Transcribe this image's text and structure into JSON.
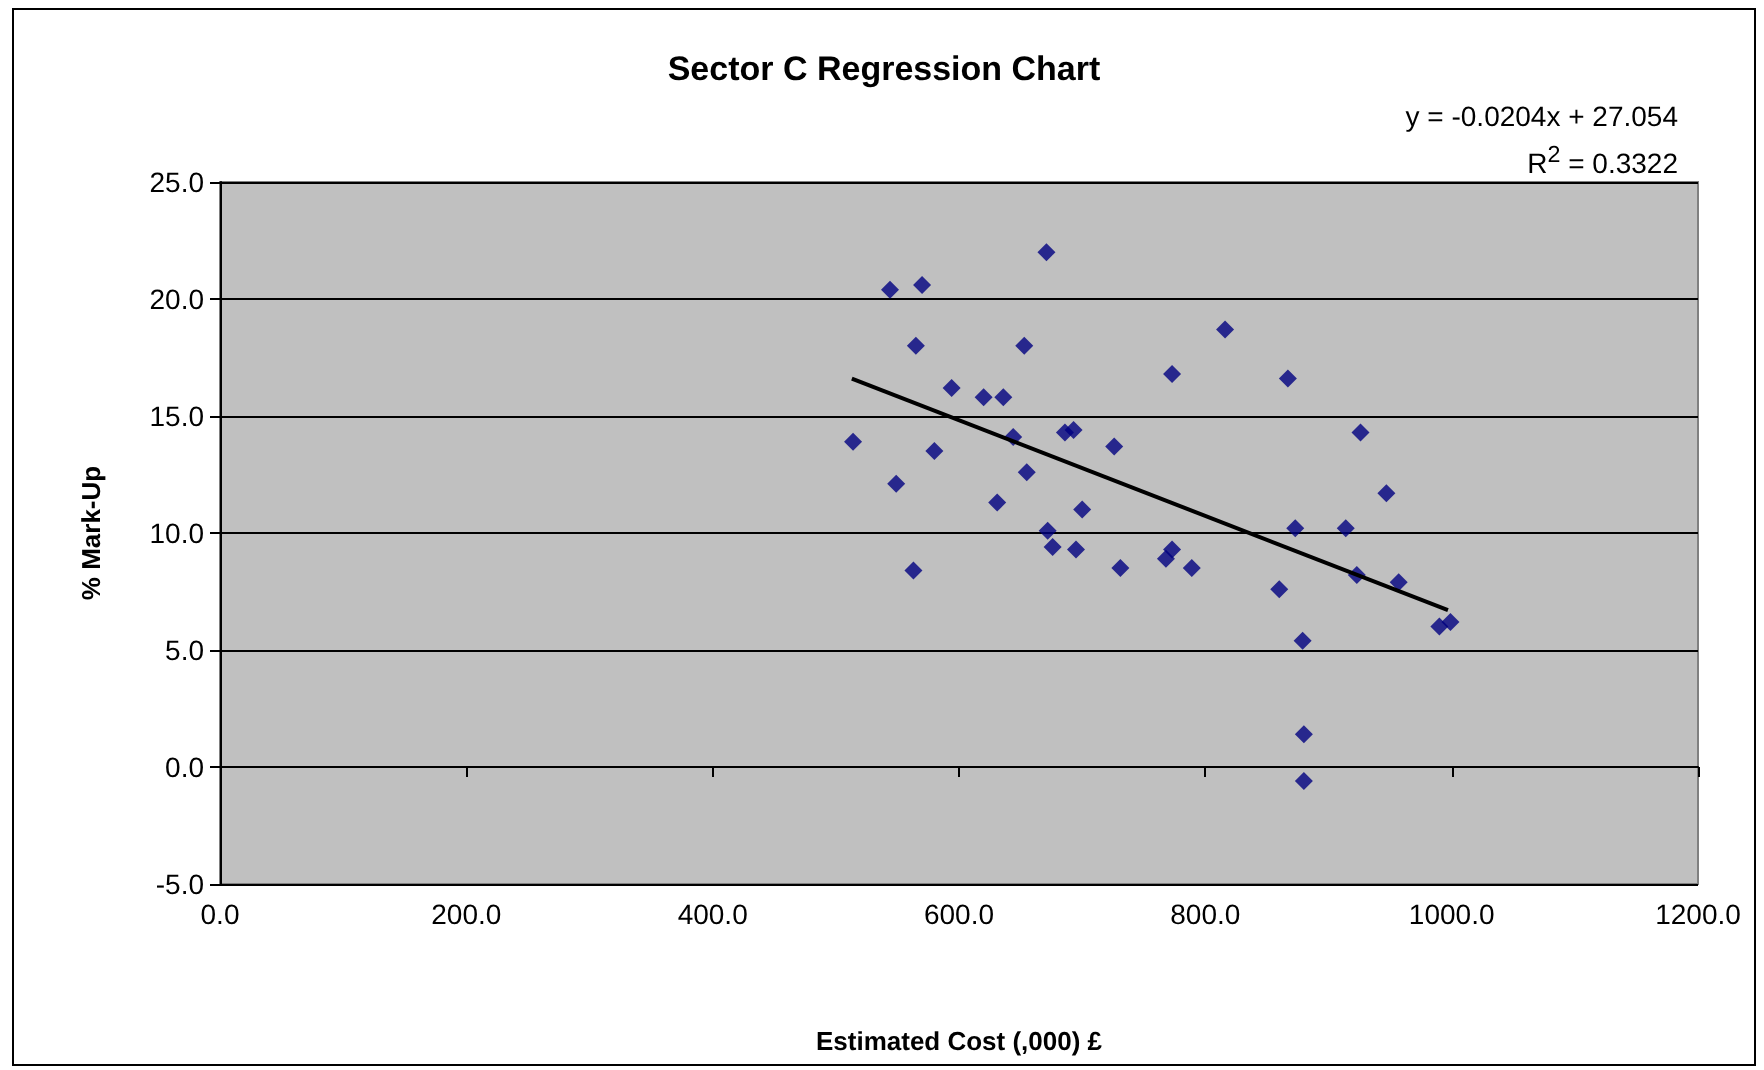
{
  "chart_data": {
    "type": "scatter",
    "title": "Sector C Regression Chart",
    "xlabel": "Estimated Cost (,000) £",
    "ylabel": "% Mark-Up",
    "annotations": [
      "y = -0.0204x + 27.054",
      "R$^{2}$ = 0.3322"
    ],
    "series": [
      {
        "color": "#000080",
        "marker": "diamond",
        "x": [
          671,
          544,
          570,
          565,
          653,
          773,
          594,
          620,
          636,
          514,
          580,
          644,
          686,
          693,
          726,
          549,
          655,
          631,
          700,
          672,
          676,
          695,
          731,
          773,
          768,
          789,
          563,
          816,
          867,
          926,
          947,
          873,
          914,
          860,
          923,
          957,
          990,
          999,
          879,
          880,
          880
        ],
        "values": [
          22.0,
          20.4,
          20.6,
          18.0,
          18.0,
          16.8,
          16.2,
          15.8,
          15.8,
          13.9,
          13.5,
          14.1,
          14.3,
          14.4,
          13.7,
          12.1,
          12.6,
          11.3,
          11.0,
          10.1,
          9.4,
          9.3,
          8.5,
          9.3,
          8.9,
          8.5,
          8.4,
          18.7,
          16.6,
          14.3,
          11.7,
          10.2,
          10.2,
          7.6,
          8.2,
          7.9,
          6.0,
          6.2,
          5.4,
          1.4,
          -0.6
        ]
      },
      {
        "type": "line",
        "color": "#000000",
        "marker": "none",
        "line_style": "solid",
        "x": [
          513,
          997
        ],
        "values": [
          16.6,
          6.7
        ]
      }
    ],
    "xlim": [
      0,
      1200
    ],
    "xticks": [
      {
        "value": 0,
        "label": "0.0"
      },
      {
        "value": 200,
        "label": "200.0"
      },
      {
        "value": 400,
        "label": "400.0"
      },
      {
        "value": 600,
        "label": "600.0"
      },
      {
        "value": 800,
        "label": "800.0"
      },
      {
        "value": 1000,
        "label": "1000.0"
      },
      {
        "value": 1200,
        "label": "1200.0"
      }
    ],
    "ylim": [
      -5,
      25
    ],
    "yticks": [
      {
        "value": -5,
        "label": "-5.0"
      },
      {
        "value": 0,
        "label": "0.0"
      },
      {
        "value": 5,
        "label": "5.0"
      },
      {
        "value": 10,
        "label": "10.0"
      },
      {
        "value": 15,
        "label": "15.0"
      },
      {
        "value": 20,
        "label": "20.0"
      },
      {
        "value": 25,
        "label": "25.0"
      }
    ],
    "grid": "y"
  }
}
